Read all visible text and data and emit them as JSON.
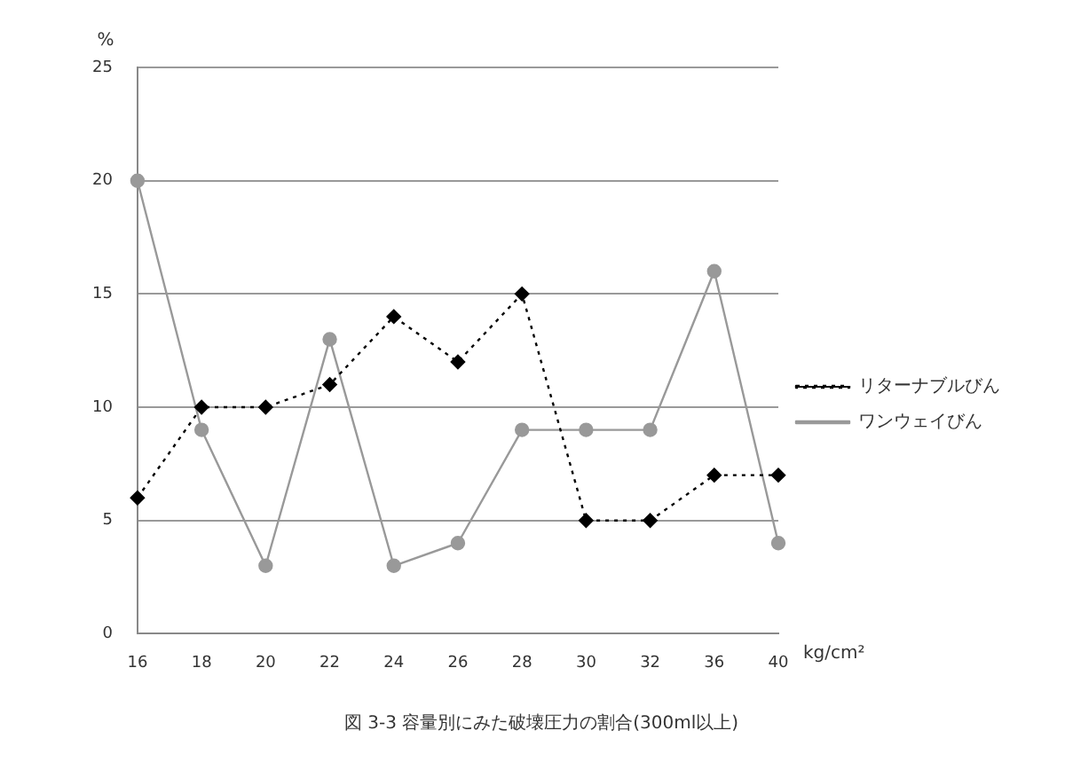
{
  "chart_data": {
    "type": "line",
    "title": "図 3-3 容量別にみた破壊圧力の割合(300ml以上)",
    "xlabel": "kg/cm²",
    "ylabel": "%",
    "categories": [
      "16",
      "18",
      "20",
      "22",
      "24",
      "26",
      "28",
      "30",
      "32",
      "36",
      "40"
    ],
    "series": [
      {
        "name": "リターナブルびん",
        "color": "#000000",
        "marker": "diamond",
        "line_style": "dotted",
        "values": [
          6,
          10,
          10,
          11,
          14,
          12,
          15,
          5,
          5,
          7,
          7
        ]
      },
      {
        "name": "ワンウェイびん",
        "color": "#999999",
        "marker": "circle",
        "line_style": "solid",
        "values": [
          20,
          9,
          3,
          13,
          3,
          4,
          9,
          9,
          9,
          16,
          4
        ]
      }
    ],
    "ylim": [
      0,
      25
    ],
    "yticks": [
      0,
      5,
      10,
      15,
      20,
      25
    ],
    "grid": "y",
    "legend": "right"
  }
}
